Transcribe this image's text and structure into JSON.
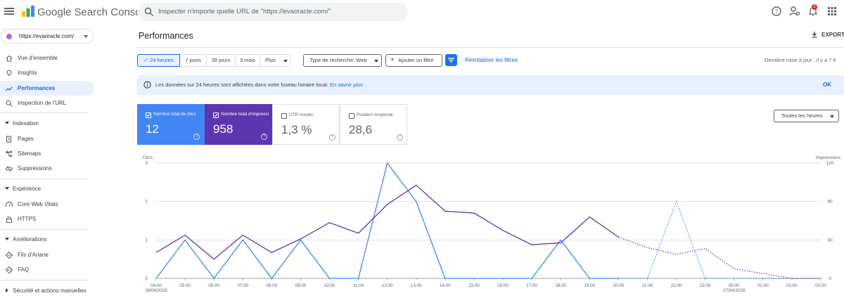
{
  "app": {
    "title": "Google Search Console"
  },
  "search": {
    "placeholder": "Inspecter n'importe quelle URL de \"https://evaoracle.com/\""
  },
  "header": {
    "notification_count": "2",
    "icons": [
      "help-icon",
      "manage-accounts-icon",
      "notifications-icon",
      "apps-icon"
    ]
  },
  "property": {
    "label": "https://evaoracle.com/"
  },
  "sidebar": {
    "items": [
      {
        "label": "Vue d'ensemble",
        "icon": "home-icon"
      },
      {
        "label": "Insights",
        "icon": "insights-icon"
      },
      {
        "label": "Performances",
        "icon": "trending-up-icon",
        "active": true
      },
      {
        "label": "Inspection de l'URL",
        "icon": "search-icon"
      }
    ],
    "sections": [
      {
        "label": "Indexation",
        "items": [
          {
            "label": "Pages",
            "icon": "pages-icon"
          },
          {
            "label": "Sitemaps",
            "icon": "sitemap-icon"
          },
          {
            "label": "Suppressions",
            "icon": "removal-icon"
          }
        ]
      },
      {
        "label": "Expérience",
        "items": [
          {
            "label": "Core Web Vitals",
            "icon": "speed-icon"
          },
          {
            "label": "HTTPS",
            "icon": "lock-icon"
          }
        ]
      },
      {
        "label": "Améliorations",
        "items": [
          {
            "label": "Fils d'Ariane",
            "icon": "diamond-icon"
          },
          {
            "label": "FAQ",
            "icon": "diamond-icon"
          }
        ]
      },
      {
        "label": "Sécurité et actions manuelles",
        "items": []
      }
    ]
  },
  "main": {
    "title": "Performances",
    "export_label": "EXPORTI",
    "date_ranges": [
      "24 heures",
      "7 jours",
      "28 jours",
      "3 mois"
    ],
    "selected_range": "24 heures",
    "more_label": "Plus",
    "search_type": "Type de recherche: Web",
    "add_filter": "Ajouter un filtre",
    "reset_filters": "Réinitialiser les filtres",
    "last_update": "Dernière mise à jour : il y a 7 h",
    "banner": {
      "text": "Les données sur 24 heures sont affichées dans votre fuseau horaire local.",
      "link": "En savoir plus",
      "ok": "OK"
    },
    "metrics": [
      {
        "label": "Nombre total de clics",
        "value": "12",
        "checked": true,
        "color": "#4285f4"
      },
      {
        "label": "Nombre total d'impressions",
        "value": "958",
        "checked": true,
        "color": "#5e35b1"
      },
      {
        "label": "CTR moyen",
        "value": "1,3 %",
        "checked": false
      },
      {
        "label": "Position moyenne",
        "value": "28,6",
        "checked": false
      }
    ],
    "hours_select": "Toutes les heures"
  },
  "chart_data": {
    "type": "line",
    "x": [
      "04:00",
      "05:00",
      "06:00",
      "07:00",
      "08:00",
      "09:00",
      "10:00",
      "11:00",
      "12:00",
      "13:00",
      "14:00",
      "15:00",
      "16:00",
      "17:00",
      "18:00",
      "19:00",
      "20:00",
      "21:00",
      "22:00",
      "23:00",
      "00:00",
      "01:00",
      "02:00",
      "03:00"
    ],
    "date_labels": {
      "04:00": "26/04/2026",
      "00:00": "27/04/2026"
    },
    "left_axis": {
      "label": "Clics",
      "ticks": [
        0,
        1,
        2,
        3
      ],
      "ylim": [
        0,
        3
      ]
    },
    "right_axis": {
      "label": "Impressions",
      "ticks": [
        0,
        40,
        80,
        120
      ],
      "ylim": [
        0,
        120
      ]
    },
    "series": [
      {
        "name": "Clics",
        "axis": "left",
        "color": "#4285f4",
        "values": [
          0,
          1,
          0,
          1,
          0,
          1,
          0,
          0,
          3,
          2,
          0,
          0,
          0,
          0,
          1,
          0,
          0,
          0,
          0,
          0,
          0,
          0,
          0,
          0
        ],
        "projected_from": 16,
        "projected_values": [
          0,
          0,
          2,
          0,
          0,
          0,
          0,
          0
        ]
      },
      {
        "name": "Impressions",
        "axis": "right",
        "color": "#5e35b1",
        "values": [
          27,
          45,
          20,
          45,
          27,
          41,
          58,
          47,
          77,
          97,
          70,
          68,
          50,
          35,
          37,
          64,
          43,
          null,
          null,
          null,
          null,
          null,
          null,
          null
        ],
        "projected_from": 16,
        "projected_values": [
          43,
          32,
          25,
          31,
          10,
          5,
          0,
          0
        ]
      }
    ],
    "grid": true
  }
}
